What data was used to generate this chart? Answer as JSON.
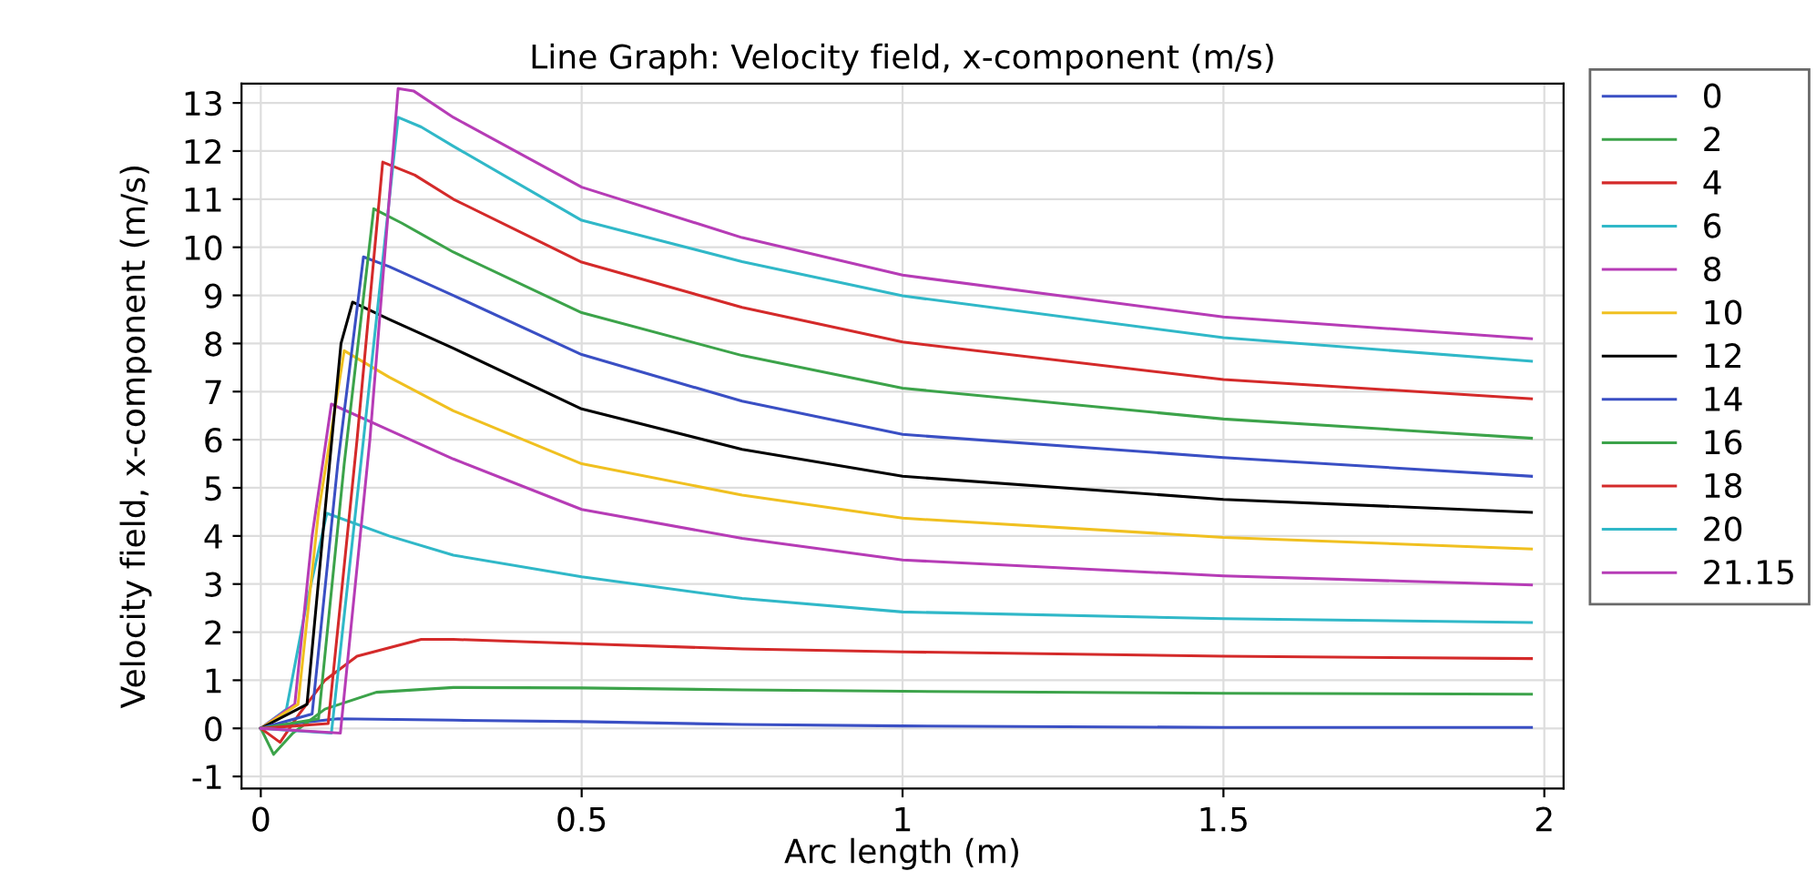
{
  "chart_data": {
    "type": "line",
    "title": "Line Graph: Velocity field, x-component (m/s)",
    "xlabel": "Arc length (m)",
    "ylabel": "Velocity field, x-component (m/s)",
    "xlim": [
      -0.03,
      2.03
    ],
    "ylim": [
      -1.25,
      13.4
    ],
    "xticks": [
      0,
      0.5,
      1,
      1.5,
      2
    ],
    "yticks": [
      -1,
      0,
      1,
      2,
      3,
      4,
      5,
      6,
      7,
      8,
      9,
      10,
      11,
      12,
      13
    ],
    "grid": true,
    "legend": "right",
    "line_style": "solid",
    "marker": "none",
    "series": [
      {
        "name": "0",
        "color": "#3a4fc4",
        "x": [
          0,
          0.05,
          0.12,
          0.3,
          0.5,
          0.75,
          1,
          1.5,
          1.98
        ],
        "values": [
          0,
          0.1,
          0.2,
          0.17,
          0.14,
          0.08,
          0.05,
          0.02,
          0.02
        ]
      },
      {
        "name": "2",
        "color": "#3ca34a",
        "x": [
          0,
          0.02,
          0.05,
          0.1,
          0.18,
          0.3,
          0.5,
          0.75,
          1,
          1.5,
          1.98
        ],
        "values": [
          0,
          -0.54,
          -0.1,
          0.4,
          0.75,
          0.85,
          0.84,
          0.8,
          0.77,
          0.73,
          0.71
        ]
      },
      {
        "name": "4",
        "color": "#d42a2a",
        "x": [
          0,
          0.03,
          0.06,
          0.1,
          0.15,
          0.25,
          0.3,
          0.5,
          0.75,
          1,
          1.5,
          1.98
        ],
        "values": [
          0,
          -0.29,
          0.3,
          1.0,
          1.5,
          1.85,
          1.85,
          1.76,
          1.65,
          1.59,
          1.5,
          1.45
        ]
      },
      {
        "name": "6",
        "color": "#30b8c8",
        "x": [
          0,
          0.04,
          0.07,
          0.103,
          0.2,
          0.3,
          0.5,
          0.75,
          1,
          1.5,
          1.98
        ],
        "values": [
          0,
          0.4,
          2.5,
          4.47,
          4.0,
          3.6,
          3.15,
          2.7,
          2.42,
          2.28,
          2.2
        ]
      },
      {
        "name": "8",
        "color": "#b63cb6",
        "x": [
          0,
          0.053,
          0.08,
          0.11,
          0.2,
          0.3,
          0.5,
          0.75,
          1,
          1.5,
          1.98
        ],
        "values": [
          0,
          0.5,
          4.0,
          6.74,
          6.2,
          5.6,
          4.55,
          3.95,
          3.5,
          3.17,
          2.98
        ]
      },
      {
        "name": "10",
        "color": "#f0c020",
        "x": [
          0,
          0.058,
          0.09,
          0.13,
          0.2,
          0.3,
          0.5,
          0.75,
          1,
          1.5,
          1.98
        ],
        "values": [
          0,
          0.5,
          4.5,
          7.85,
          7.3,
          6.6,
          5.5,
          4.85,
          4.37,
          3.97,
          3.73
        ]
      },
      {
        "name": "12",
        "color": "#000000",
        "x": [
          0,
          0.072,
          0.1,
          0.125,
          0.143,
          0.2,
          0.3,
          0.5,
          0.75,
          1,
          1.5,
          1.98
        ],
        "values": [
          0,
          0.5,
          4.5,
          8.0,
          8.86,
          8.5,
          7.9,
          6.64,
          5.8,
          5.24,
          4.76,
          4.49
        ]
      },
      {
        "name": "14",
        "color": "#3a4fc4",
        "x": [
          0,
          0.08,
          0.12,
          0.16,
          0.2,
          0.3,
          0.5,
          0.75,
          1,
          1.5,
          1.98
        ],
        "values": [
          0,
          0.3,
          5.5,
          9.8,
          9.6,
          9.0,
          7.77,
          6.8,
          6.11,
          5.63,
          5.24
        ]
      },
      {
        "name": "16",
        "color": "#3ca34a",
        "x": [
          0,
          0.09,
          0.13,
          0.176,
          0.22,
          0.3,
          0.5,
          0.75,
          1,
          1.5,
          1.98
        ],
        "values": [
          0,
          0.2,
          5.5,
          10.8,
          10.5,
          9.9,
          8.64,
          7.75,
          7.07,
          6.43,
          6.03
        ]
      },
      {
        "name": "18",
        "color": "#d42a2a",
        "x": [
          0,
          0.105,
          0.15,
          0.19,
          0.24,
          0.3,
          0.5,
          0.75,
          1,
          1.5,
          1.98
        ],
        "values": [
          0,
          0.1,
          6.0,
          11.77,
          11.5,
          11.0,
          9.69,
          8.75,
          8.03,
          7.25,
          6.85
        ]
      },
      {
        "name": "20",
        "color": "#30b8c8",
        "x": [
          0,
          0.11,
          0.16,
          0.214,
          0.25,
          0.3,
          0.5,
          0.75,
          1,
          1.5,
          1.98
        ],
        "values": [
          0,
          -0.1,
          6.0,
          12.7,
          12.5,
          12.1,
          10.56,
          9.7,
          8.99,
          8.12,
          7.63
        ]
      },
      {
        "name": "21.15",
        "color": "#b63cb6",
        "x": [
          0,
          0.124,
          0.17,
          0.214,
          0.238,
          0.3,
          0.5,
          0.75,
          1,
          1.5,
          1.98
        ],
        "values": [
          0,
          -0.1,
          6.0,
          13.3,
          13.25,
          12.7,
          11.25,
          10.2,
          9.42,
          8.55,
          8.1
        ]
      }
    ]
  }
}
